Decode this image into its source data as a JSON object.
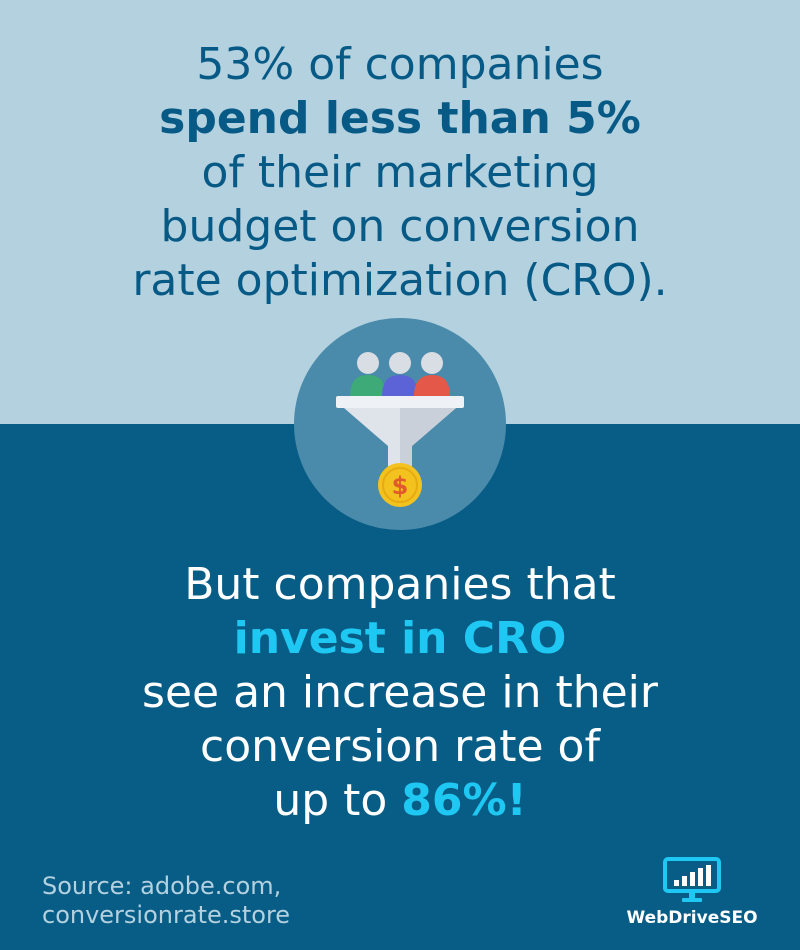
{
  "headline": {
    "line1": "53% of companies",
    "line2": "spend less than 5%",
    "line3": "of their marketing",
    "line4": "budget on conversion",
    "line5": "rate optimization (CRO)."
  },
  "body": {
    "line1": "But companies that",
    "line2": "invest in CRO",
    "line3": "see an increase in their",
    "line4": "conversion rate of",
    "line5_prefix": "up to ",
    "line5_highlight": "86%!"
  },
  "source": {
    "line1": "Source: adobe.com,",
    "line2": "conversionrate.store"
  },
  "brand": {
    "name": "WebDriveSEO",
    "icon": "monitor-chart-icon"
  },
  "illustration": {
    "icon": "conversion-funnel-icon",
    "colors": {
      "circle": "#4a8aaa",
      "person_green": "#3daa78",
      "person_blue": "#5b63d6",
      "person_red": "#e4584a",
      "coin": "#f4c21f",
      "dollar": "#e05a2b"
    }
  },
  "colors": {
    "top_background": "#b3d1df",
    "bottom_background": "#085d87",
    "headline_text": "#075a86",
    "accent": "#1ec8f2"
  }
}
